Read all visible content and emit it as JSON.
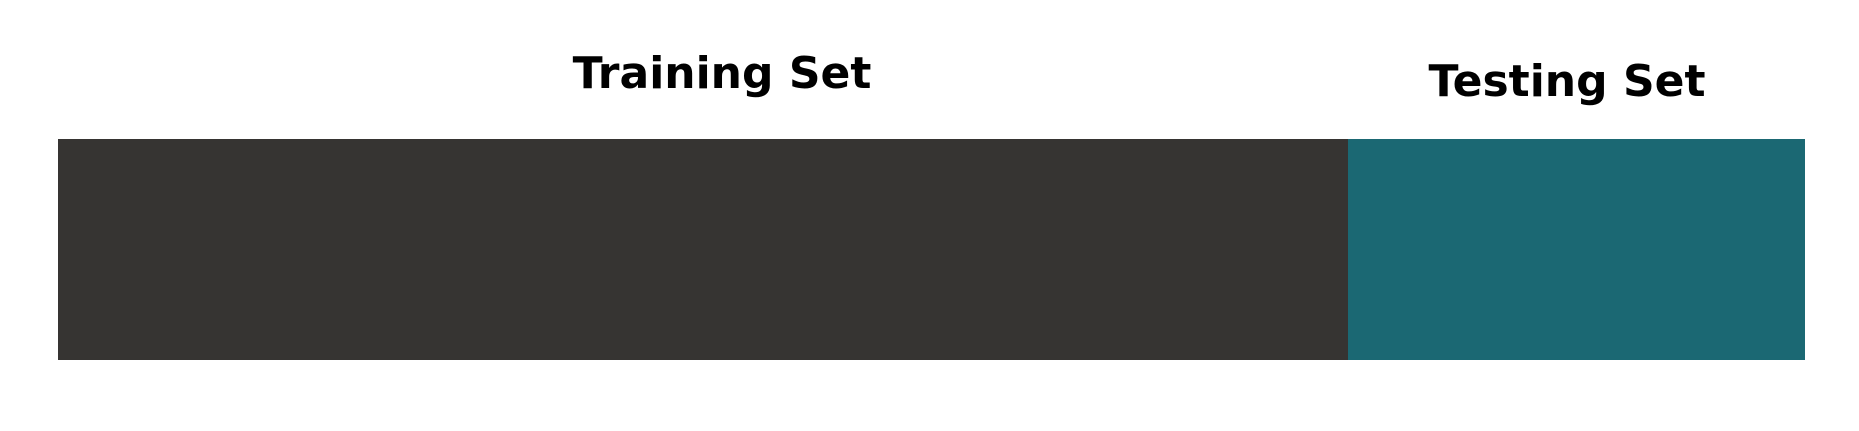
{
  "segments": [
    {
      "label": "Training Set",
      "color": "#363432"
    },
    {
      "label": "Testing Set",
      "color": "#1b6873"
    }
  ]
}
